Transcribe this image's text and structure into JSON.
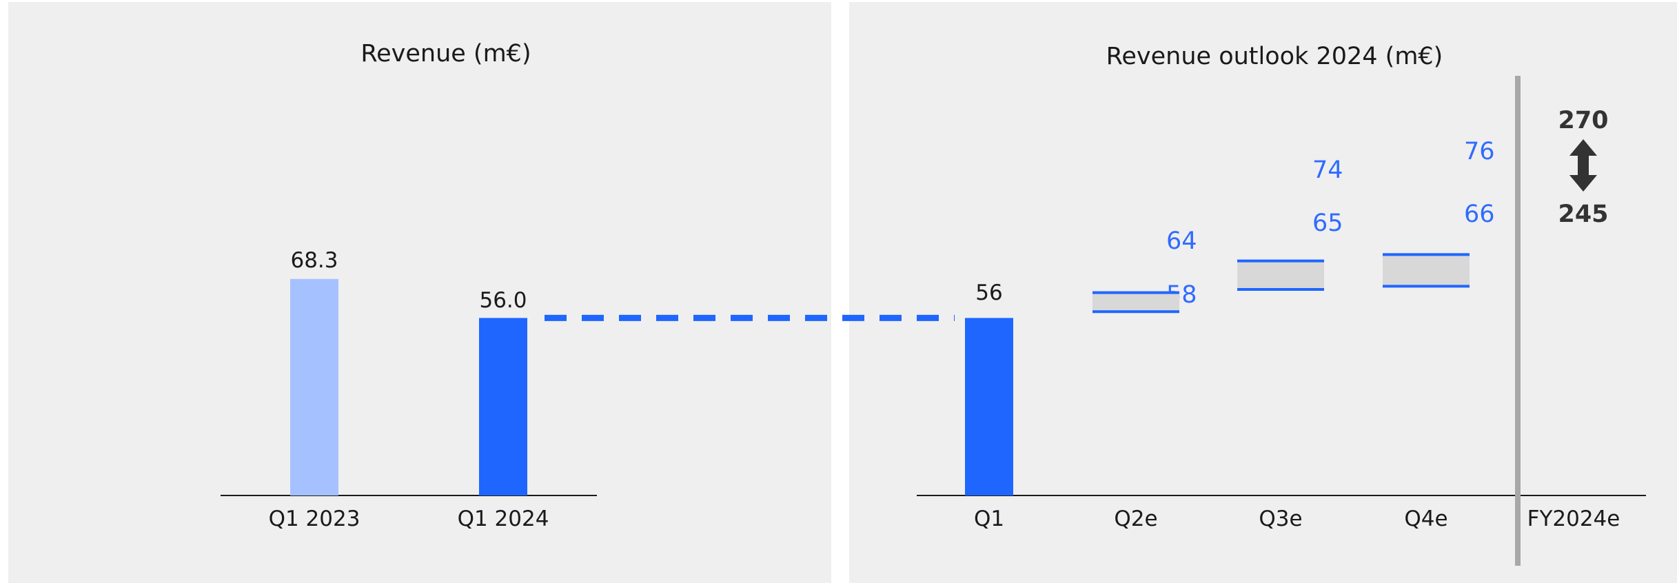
{
  "colors": {
    "accent": "#1f66ff",
    "accent_light": "#a6c1ff",
    "range_fill": "#d8d8d8",
    "range_text": "#2f6bff",
    "panel_bg": "#efefef",
    "divider": "#a8a8a8",
    "arrow": "#333333"
  },
  "chart_data": [
    {
      "type": "bar",
      "title": "Revenue (m€)",
      "categories": [
        "Q1 2023",
        "Q1 2024"
      ],
      "values": [
        68.3,
        56.0
      ],
      "labels": [
        "68.3",
        "56.0"
      ],
      "ylim": [
        0,
        150
      ]
    },
    {
      "type": "bar",
      "title": "Revenue outlook 2024 (m€)",
      "categories": [
        "Q1",
        "Q2e",
        "Q3e",
        "Q4e",
        "FY2024e"
      ],
      "actual": {
        "category": "Q1",
        "value": 56,
        "label": "56"
      },
      "ranges": [
        {
          "category": "Q2e",
          "low": 58,
          "high": 64,
          "low_label": "58",
          "high_label": "64"
        },
        {
          "category": "Q3e",
          "low": 65,
          "high": 74,
          "low_label": "65",
          "high_label": "74"
        },
        {
          "category": "Q4e",
          "low": 66,
          "high": 76,
          "low_label": "66",
          "high_label": "76"
        }
      ],
      "full_year": {
        "category": "FY2024e",
        "high": 270,
        "low": 245,
        "high_label": "270",
        "low_label": "245"
      },
      "ylim": [
        0,
        150
      ]
    }
  ]
}
